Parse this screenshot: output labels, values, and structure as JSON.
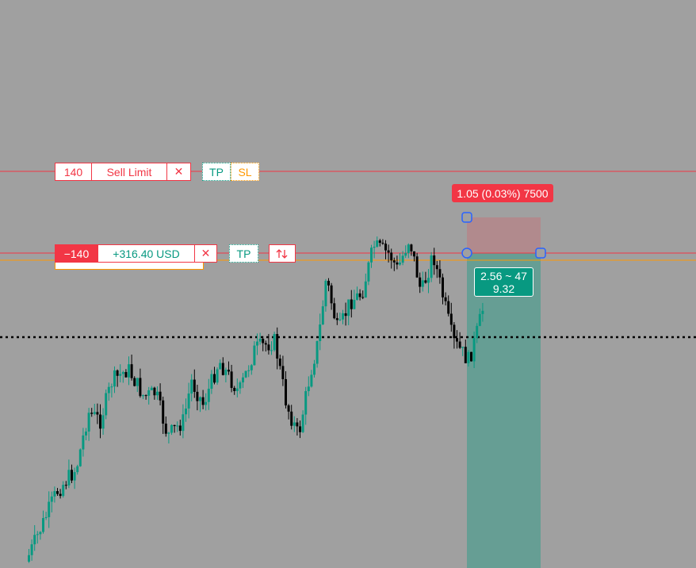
{
  "order_line": {
    "quantity": "140",
    "label": "Sell Limit",
    "cancel": "✕",
    "tp": "TP",
    "sl": "SL"
  },
  "position_line": {
    "quantity": "−140",
    "pnl": "+316.40 USD",
    "close": "✕",
    "tp": "TP"
  },
  "risk_reward": {
    "risk_label": "1.05 (0.03%) 7500",
    "ratio_label": "2.56 ~ 47",
    "reward_label": "9.32"
  }
}
